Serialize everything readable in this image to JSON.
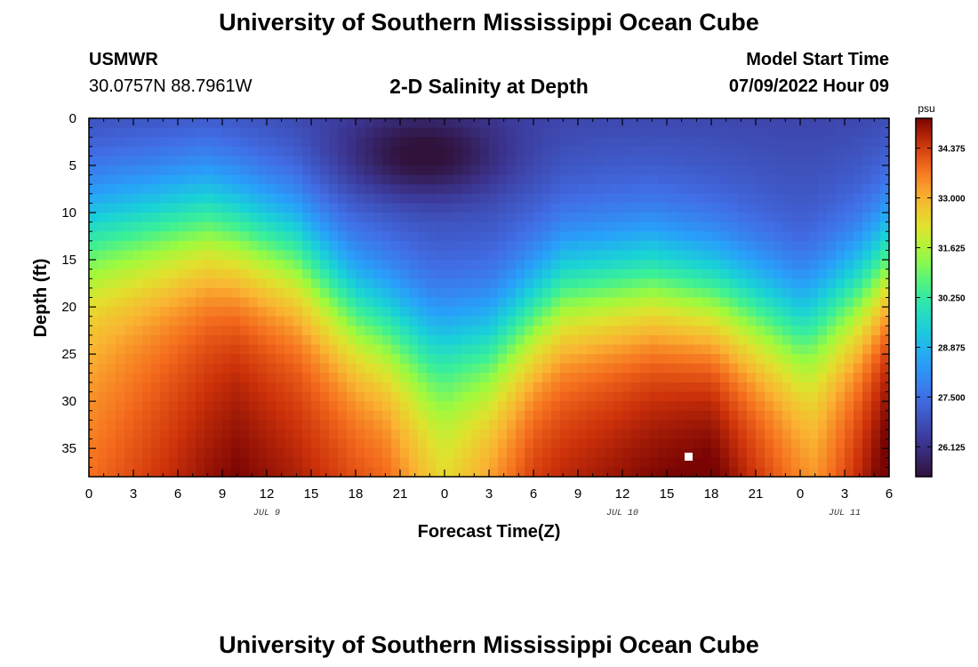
{
  "header": {
    "title": "University of Southern Mississippi Ocean Cube",
    "station": "USMWR",
    "coordinates": "30.0757N  88.7961W",
    "subtitle": "2-D Salinity at Depth",
    "model_start_label": "Model Start Time",
    "model_start_value": "07/09/2022 Hour 09"
  },
  "footer": {
    "title": "University of Southern Mississippi Ocean Cube"
  },
  "chart_data": {
    "type": "heatmap",
    "xlabel": "Forecast Time(Z)",
    "ylabel": "Depth (ft)",
    "x_tick_labels": [
      "0",
      "3",
      "6",
      "9",
      "12",
      "15",
      "18",
      "21",
      "0",
      "3",
      "6",
      "9",
      "12",
      "15",
      "18",
      "21",
      "0",
      "3",
      "6"
    ],
    "x_range_hours": [
      0,
      54
    ],
    "date_labels": [
      {
        "label": "JUL 9",
        "hour": 12
      },
      {
        "label": "JUL 10",
        "hour": 36
      },
      {
        "label": "JUL 11",
        "hour": 51
      }
    ],
    "y_tick_labels": [
      "0",
      "5",
      "10",
      "15",
      "20",
      "25",
      "30",
      "35"
    ],
    "ylim": [
      0,
      38
    ],
    "colorbar": {
      "unit": "psu",
      "range": [
        25.3,
        35.2
      ],
      "tick_labels": [
        "34.375",
        "33.000",
        "31.625",
        "30.250",
        "28.875",
        "27.500",
        "26.125"
      ],
      "tick_values": [
        34.375,
        33.0,
        31.625,
        30.25,
        28.875,
        27.5,
        26.125
      ]
    },
    "surface_salinity_psu": 26.8,
    "halocline_depth_ft": [
      {
        "hour": 0,
        "depth": 12
      },
      {
        "hour": 8,
        "depth": 10.5
      },
      {
        "hour": 14,
        "depth": 14
      },
      {
        "hour": 18,
        "depth": 20
      },
      {
        "hour": 23,
        "depth": 24
      },
      {
        "hour": 27,
        "depth": 24
      },
      {
        "hour": 32,
        "depth": 18
      },
      {
        "hour": 38,
        "depth": 17
      },
      {
        "hour": 43,
        "depth": 19
      },
      {
        "hour": 48,
        "depth": 22
      },
      {
        "hour": 52,
        "depth": 18
      },
      {
        "hour": 54,
        "depth": 15
      }
    ],
    "fresh_core": {
      "hour": 22.5,
      "depth_ft": 4,
      "salinity_psu": 25.4
    },
    "bottom_salinity_psu": [
      {
        "hour": 0,
        "value": 33.0
      },
      {
        "hour": 10,
        "value": 34.4
      },
      {
        "hour": 20,
        "value": 33.6
      },
      {
        "hour": 24,
        "value": 32.2
      },
      {
        "hour": 30,
        "value": 34.0
      },
      {
        "hour": 42,
        "value": 34.9
      },
      {
        "hour": 49,
        "value": 33.0
      },
      {
        "hour": 54,
        "value": 34.9
      }
    ]
  }
}
